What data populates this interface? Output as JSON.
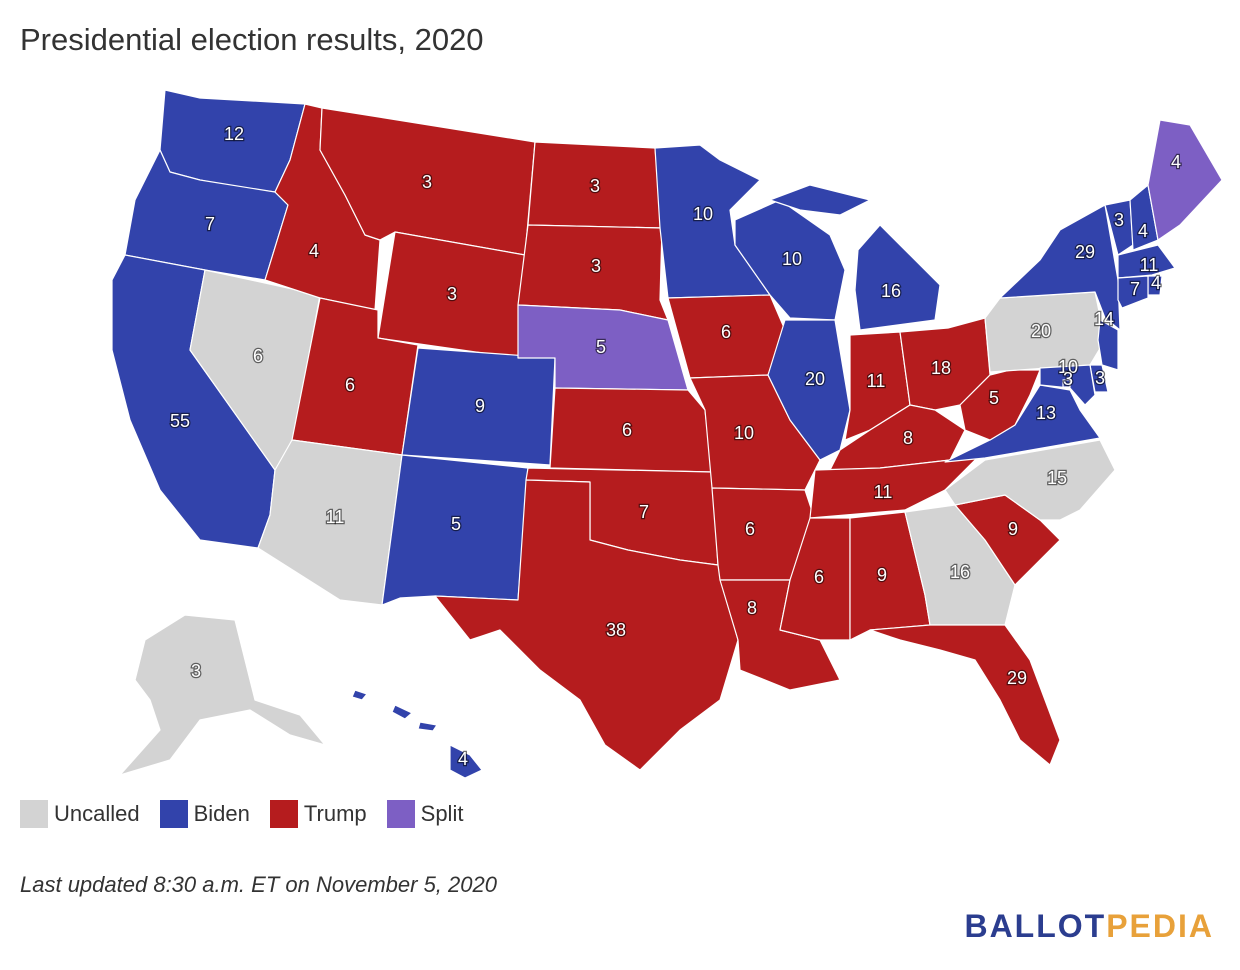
{
  "title": "Presidential election results, 2020",
  "updated": "Last updated 8:30 a.m. ET on November 5, 2020",
  "brand": {
    "part1": "BALLOT",
    "part2": "PEDIA"
  },
  "colors": {
    "uncalled": "#d3d3d3",
    "biden": "#3243ab",
    "trump": "#b51c1e",
    "split": "#7d5fc4"
  },
  "legend": [
    {
      "key": "uncalled",
      "label": "Uncalled"
    },
    {
      "key": "biden",
      "label": "Biden"
    },
    {
      "key": "trump",
      "label": "Trump"
    },
    {
      "key": "split",
      "label": "Split"
    }
  ],
  "states": [
    {
      "id": "WA",
      "ev": "12",
      "result": "biden"
    },
    {
      "id": "OR",
      "ev": "7",
      "result": "biden"
    },
    {
      "id": "CA",
      "ev": "55",
      "result": "biden"
    },
    {
      "id": "NV",
      "ev": "6",
      "result": "uncalled"
    },
    {
      "id": "ID",
      "ev": "4",
      "result": "trump"
    },
    {
      "id": "MT",
      "ev": "3",
      "result": "trump"
    },
    {
      "id": "WY",
      "ev": "3",
      "result": "trump"
    },
    {
      "id": "UT",
      "ev": "6",
      "result": "trump"
    },
    {
      "id": "AZ",
      "ev": "11",
      "result": "uncalled"
    },
    {
      "id": "CO",
      "ev": "9",
      "result": "biden"
    },
    {
      "id": "NM",
      "ev": "5",
      "result": "biden"
    },
    {
      "id": "ND",
      "ev": "3",
      "result": "trump"
    },
    {
      "id": "SD",
      "ev": "3",
      "result": "trump"
    },
    {
      "id": "NE",
      "ev": "5",
      "result": "split"
    },
    {
      "id": "KS",
      "ev": "6",
      "result": "trump"
    },
    {
      "id": "OK",
      "ev": "7",
      "result": "trump"
    },
    {
      "id": "TX",
      "ev": "38",
      "result": "trump"
    },
    {
      "id": "MN",
      "ev": "10",
      "result": "biden"
    },
    {
      "id": "IA",
      "ev": "6",
      "result": "trump"
    },
    {
      "id": "MO",
      "ev": "10",
      "result": "trump"
    },
    {
      "id": "AR",
      "ev": "6",
      "result": "trump"
    },
    {
      "id": "LA",
      "ev": "8",
      "result": "trump"
    },
    {
      "id": "WI",
      "ev": "10",
      "result": "biden"
    },
    {
      "id": "IL",
      "ev": "20",
      "result": "biden"
    },
    {
      "id": "MI",
      "ev": "16",
      "result": "biden"
    },
    {
      "id": "IN",
      "ev": "11",
      "result": "trump"
    },
    {
      "id": "OH",
      "ev": "18",
      "result": "trump"
    },
    {
      "id": "KY",
      "ev": "8",
      "result": "trump"
    },
    {
      "id": "TN",
      "ev": "11",
      "result": "trump"
    },
    {
      "id": "MS",
      "ev": "6",
      "result": "trump"
    },
    {
      "id": "AL",
      "ev": "9",
      "result": "trump"
    },
    {
      "id": "GA",
      "ev": "16",
      "result": "uncalled"
    },
    {
      "id": "FL",
      "ev": "29",
      "result": "trump"
    },
    {
      "id": "SC",
      "ev": "9",
      "result": "trump"
    },
    {
      "id": "NC",
      "ev": "15",
      "result": "uncalled"
    },
    {
      "id": "VA",
      "ev": "13",
      "result": "biden"
    },
    {
      "id": "WV",
      "ev": "5",
      "result": "trump"
    },
    {
      "id": "PA",
      "ev": "20",
      "result": "uncalled"
    },
    {
      "id": "NY",
      "ev": "29",
      "result": "biden"
    },
    {
      "id": "VT",
      "ev": "3",
      "result": "biden"
    },
    {
      "id": "NH",
      "ev": "4",
      "result": "biden"
    },
    {
      "id": "ME",
      "ev": "4",
      "result": "split"
    },
    {
      "id": "MA",
      "ev": "11",
      "result": "biden"
    },
    {
      "id": "RI",
      "ev": "4",
      "result": "biden"
    },
    {
      "id": "CT",
      "ev": "7",
      "result": "biden"
    },
    {
      "id": "NJ",
      "ev": "14",
      "result": "biden"
    },
    {
      "id": "DE",
      "ev": "3",
      "result": "biden"
    },
    {
      "id": "MD",
      "ev": "10",
      "result": "biden"
    },
    {
      "id": "DC",
      "ev": "3",
      "result": "biden"
    },
    {
      "id": "AK",
      "ev": "3",
      "result": "uncalled"
    },
    {
      "id": "HI",
      "ev": "4",
      "result": "biden"
    }
  ]
}
